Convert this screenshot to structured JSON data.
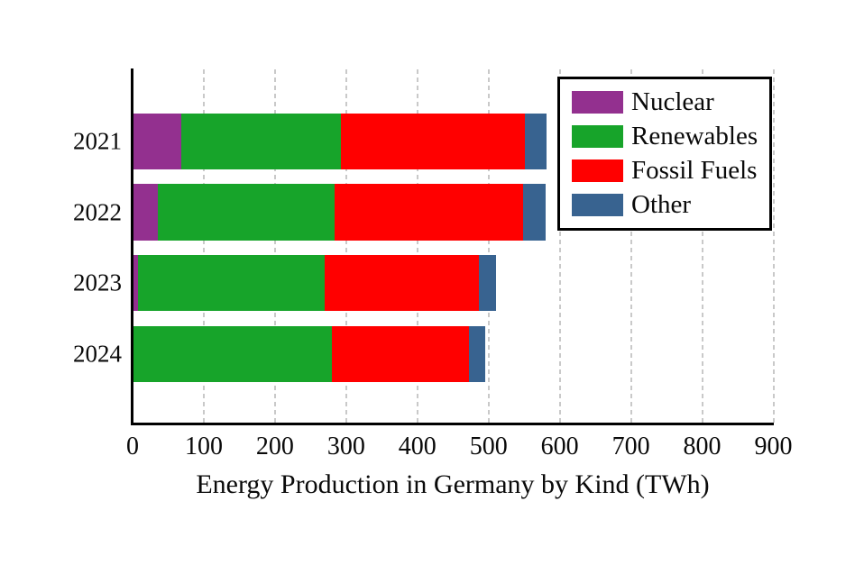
{
  "chart_data": {
    "type": "bar",
    "orientation": "horizontal",
    "stacked": true,
    "xlabel": "Energy Production in Germany by Kind (TWh)",
    "categories": [
      "2021",
      "2022",
      "2023",
      "2024"
    ],
    "series": [
      {
        "name": "Nuclear",
        "color": "#93308F",
        "values": [
          69,
          35,
          7,
          0
        ]
      },
      {
        "name": "Renewables",
        "color": "#17A42A",
        "values": [
          223,
          249,
          263,
          280
        ]
      },
      {
        "name": "Fossil Fuels",
        "color": "#FF0000",
        "values": [
          259,
          265,
          216,
          192
        ]
      },
      {
        "name": "Other",
        "color": "#386390",
        "values": [
          31,
          31,
          24,
          23
        ]
      }
    ],
    "totals": [
      582,
      580,
      510,
      495
    ],
    "xlim": [
      0,
      900
    ],
    "xticks": [
      0,
      100,
      200,
      300,
      400,
      500,
      600,
      700,
      800,
      900
    ],
    "grid": "vertical-dashed",
    "legend_position": "top-right",
    "legend_labels": [
      "Nuclear",
      "Renewables",
      "Fossil Fuels",
      "Other"
    ]
  },
  "colors": {
    "background": "#ffffff",
    "axis": "#000000",
    "grid": "#c9c9c9",
    "text": "#0a0a0a"
  }
}
